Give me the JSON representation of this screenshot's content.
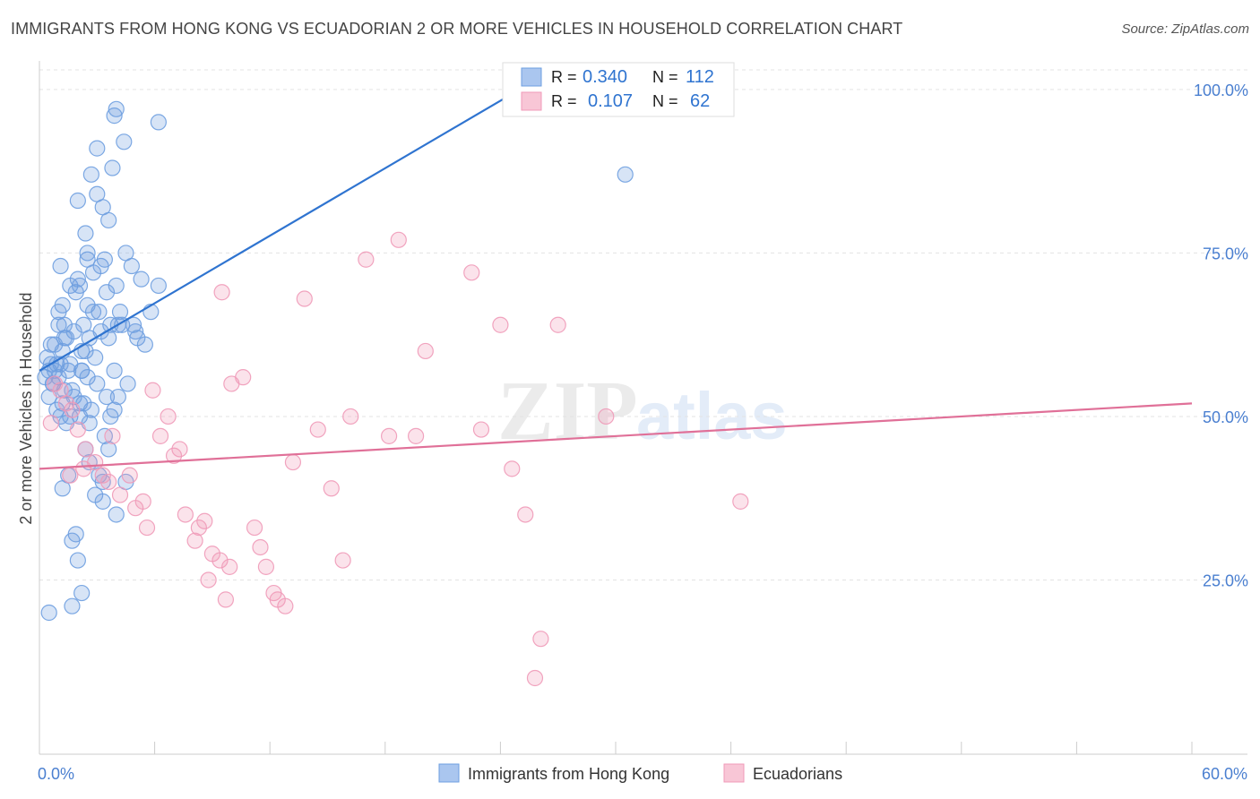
{
  "title": "IMMIGRANTS FROM HONG KONG VS ECUADORIAN 2 OR MORE VEHICLES IN HOUSEHOLD CORRELATION CHART",
  "source": "Source: ZipAtlas.com",
  "watermark": {
    "zip": "ZIP",
    "atlas": "atlas"
  },
  "colors": {
    "blue": "#6e9fe0",
    "blue_line": "#2f74d0",
    "pink": "#f09ab8",
    "pink_line": "#e07098",
    "tick_text": "#4a7fd0",
    "grid": "#e3e3e3",
    "axis": "#cccccc"
  },
  "chart_data": {
    "type": "scatter",
    "title": "IMMIGRANTS FROM HONG KONG VS ECUADORIAN 2 OR MORE VEHICLES IN HOUSEHOLD CORRELATION CHART",
    "xlabel": "",
    "ylabel": "2 or more Vehicles in Household",
    "xlim": [
      0,
      60
    ],
    "ylim": [
      0,
      103
    ],
    "x_tick_labels": [
      "0.0%",
      "60.0%"
    ],
    "y_ticks": [
      25,
      50,
      75,
      100
    ],
    "y_tick_labels": [
      "25.0%",
      "50.0%",
      "75.0%",
      "100.0%"
    ],
    "grid": true,
    "legend_position": "top-center",
    "stats": [
      {
        "r_label": "R =",
        "r_value": "0.340",
        "n_label": "N =",
        "n_value": "112"
      },
      {
        "r_label": "R =",
        "r_value": "0.107",
        "n_label": "N =",
        "n_value": "62"
      }
    ],
    "series": [
      {
        "name": "Immigrants from Hong Kong",
        "trend": {
          "x": [
            0,
            25
          ],
          "y": [
            57,
            100
          ]
        },
        "points": [
          [
            0.3,
            56
          ],
          [
            0.5,
            57
          ],
          [
            0.4,
            59
          ],
          [
            0.6,
            58
          ],
          [
            0.8,
            57
          ],
          [
            1.0,
            56
          ],
          [
            0.5,
            53
          ],
          [
            0.7,
            55
          ],
          [
            1.2,
            52
          ],
          [
            0.9,
            51
          ],
          [
            1.1,
            50
          ],
          [
            1.4,
            49
          ],
          [
            0.8,
            61
          ],
          [
            1.0,
            64
          ],
          [
            1.3,
            62
          ],
          [
            0.6,
            61
          ],
          [
            1.2,
            60
          ],
          [
            1.6,
            58
          ],
          [
            2.2,
            57
          ],
          [
            2.5,
            56
          ],
          [
            3.0,
            55
          ],
          [
            1.8,
            53
          ],
          [
            2.1,
            52
          ],
          [
            2.7,
            51
          ],
          [
            1.6,
            70
          ],
          [
            1.9,
            69
          ],
          [
            2.1,
            70
          ],
          [
            2.5,
            67
          ],
          [
            2.8,
            66
          ],
          [
            3.1,
            66
          ],
          [
            1.2,
            67
          ],
          [
            2.0,
            71
          ],
          [
            2.5,
            74
          ],
          [
            3.2,
            73
          ],
          [
            3.4,
            74
          ],
          [
            4.0,
            70
          ],
          [
            4.5,
            75
          ],
          [
            4.8,
            73
          ],
          [
            5.3,
            71
          ],
          [
            6.2,
            70
          ],
          [
            1.1,
            73
          ],
          [
            1.3,
            64
          ],
          [
            2.3,
            64
          ],
          [
            2.6,
            62
          ],
          [
            3.2,
            63
          ],
          [
            3.7,
            64
          ],
          [
            4.1,
            64
          ],
          [
            4.3,
            64
          ],
          [
            5.0,
            63
          ],
          [
            5.1,
            62
          ],
          [
            2.0,
            83
          ],
          [
            2.7,
            87
          ],
          [
            3.0,
            84
          ],
          [
            3.3,
            82
          ],
          [
            3.6,
            80
          ],
          [
            4.0,
            97
          ],
          [
            3.9,
            96
          ],
          [
            3.0,
            91
          ],
          [
            4.4,
            92
          ],
          [
            6.2,
            95
          ],
          [
            3.8,
            88
          ],
          [
            2.4,
            78
          ],
          [
            2.5,
            75
          ],
          [
            2.2,
            57
          ],
          [
            1.3,
            54
          ],
          [
            1.6,
            50
          ],
          [
            2.4,
            45
          ],
          [
            2.6,
            43
          ],
          [
            3.4,
            47
          ],
          [
            3.6,
            45
          ],
          [
            4.5,
            40
          ],
          [
            3.1,
            41
          ],
          [
            1.5,
            41
          ],
          [
            1.2,
            39
          ],
          [
            2.9,
            38
          ],
          [
            3.3,
            37
          ],
          [
            4.0,
            35
          ],
          [
            2.0,
            28
          ],
          [
            2.2,
            23
          ],
          [
            1.7,
            21
          ],
          [
            0.5,
            20
          ],
          [
            1.9,
            32
          ],
          [
            1.7,
            31
          ],
          [
            2.6,
            49
          ],
          [
            3.3,
            40
          ],
          [
            4.6,
            55
          ],
          [
            3.9,
            51
          ],
          [
            2.2,
            60
          ],
          [
            3.5,
            53
          ],
          [
            4.1,
            53
          ],
          [
            3.7,
            50
          ],
          [
            30.5,
            87
          ],
          [
            1.0,
            66
          ],
          [
            1.4,
            62
          ],
          [
            2.9,
            59
          ],
          [
            0.9,
            58
          ],
          [
            1.7,
            54
          ],
          [
            2.3,
            52
          ],
          [
            2.1,
            50
          ],
          [
            1.5,
            57
          ],
          [
            1.8,
            63
          ],
          [
            2.4,
            60
          ],
          [
            3.6,
            62
          ],
          [
            5.5,
            61
          ],
          [
            0.7,
            55
          ],
          [
            1.1,
            58
          ],
          [
            2.8,
            72
          ],
          [
            3.5,
            69
          ],
          [
            4.2,
            66
          ],
          [
            4.9,
            64
          ],
          [
            5.8,
            66
          ],
          [
            3.9,
            57
          ]
        ]
      },
      {
        "name": "Ecuadorians",
        "trend": {
          "x": [
            0,
            60
          ],
          "y": [
            42,
            52
          ]
        },
        "points": [
          [
            0.8,
            55
          ],
          [
            1.1,
            54
          ],
          [
            1.4,
            52
          ],
          [
            1.7,
            51
          ],
          [
            0.6,
            49
          ],
          [
            2.0,
            48
          ],
          [
            2.4,
            45
          ],
          [
            2.9,
            43
          ],
          [
            3.3,
            41
          ],
          [
            3.6,
            40
          ],
          [
            2.3,
            42
          ],
          [
            1.6,
            41
          ],
          [
            3.8,
            47
          ],
          [
            4.7,
            41
          ],
          [
            4.2,
            38
          ],
          [
            5.0,
            36
          ],
          [
            5.4,
            37
          ],
          [
            5.6,
            33
          ],
          [
            5.9,
            54
          ],
          [
            6.3,
            47
          ],
          [
            6.7,
            50
          ],
          [
            7.0,
            44
          ],
          [
            7.3,
            45
          ],
          [
            7.6,
            35
          ],
          [
            8.1,
            31
          ],
          [
            8.3,
            33
          ],
          [
            8.6,
            34
          ],
          [
            9.0,
            29
          ],
          [
            9.4,
            28
          ],
          [
            9.9,
            27
          ],
          [
            10.0,
            55
          ],
          [
            10.6,
            56
          ],
          [
            11.2,
            33
          ],
          [
            11.5,
            30
          ],
          [
            11.8,
            27
          ],
          [
            12.2,
            23
          ],
          [
            12.4,
            22
          ],
          [
            12.8,
            21
          ],
          [
            9.7,
            22
          ],
          [
            8.8,
            25
          ],
          [
            9.5,
            69
          ],
          [
            13.2,
            43
          ],
          [
            13.8,
            68
          ],
          [
            14.5,
            48
          ],
          [
            15.2,
            39
          ],
          [
            15.8,
            28
          ],
          [
            16.2,
            50
          ],
          [
            17.0,
            74
          ],
          [
            18.2,
            47
          ],
          [
            18.7,
            77
          ],
          [
            19.6,
            47
          ],
          [
            20.1,
            60
          ],
          [
            22.5,
            72
          ],
          [
            23.0,
            48
          ],
          [
            24.0,
            64
          ],
          [
            24.6,
            42
          ],
          [
            25.3,
            35
          ],
          [
            26.1,
            16
          ],
          [
            25.8,
            10
          ],
          [
            27.0,
            64
          ],
          [
            29.5,
            50
          ],
          [
            36.5,
            37
          ]
        ]
      }
    ]
  },
  "legend": {
    "items": [
      {
        "label": "Immigrants from Hong Kong"
      },
      {
        "label": "Ecuadorians"
      }
    ]
  }
}
